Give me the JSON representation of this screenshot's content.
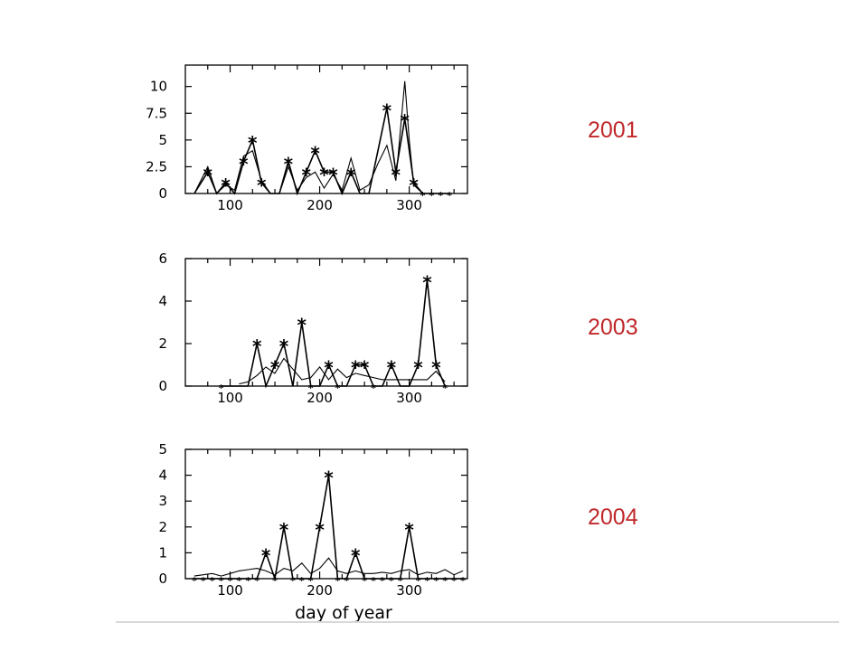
{
  "chart_data": [
    {
      "type": "line",
      "title": "",
      "year_label": "2001",
      "xlabel": "",
      "ylabel": "",
      "xlim": [
        50,
        365
      ],
      "ylim": [
        0,
        12
      ],
      "xticks": [
        "100",
        "200",
        "300"
      ],
      "xtick_values": [
        100,
        200,
        300
      ],
      "yticks": [
        "0",
        "2.5",
        "5",
        "7.5",
        "10"
      ],
      "ytick_values": [
        0,
        2.5,
        5,
        7.5,
        10
      ],
      "series": [
        {
          "style": "star",
          "x": [
            60,
            75,
            85,
            95,
            105,
            115,
            125,
            135,
            145,
            155,
            165,
            175,
            185,
            195,
            205,
            215,
            225,
            235,
            245,
            255,
            265,
            275,
            285,
            295,
            305,
            315,
            325,
            335,
            345
          ],
          "y": [
            0,
            2,
            0,
            1,
            0,
            3,
            5,
            1,
            0,
            0,
            3,
            0,
            2,
            4,
            2,
            2,
            0,
            2,
            0,
            0,
            4,
            8,
            2,
            7,
            1,
            0,
            0,
            0,
            0
          ],
          "marker": [
            false,
            true,
            false,
            true,
            false,
            true,
            true,
            true,
            false,
            false,
            true,
            false,
            true,
            true,
            true,
            true,
            false,
            true,
            false,
            false,
            false,
            true,
            true,
            true,
            true,
            true,
            true,
            true,
            true
          ]
        },
        {
          "style": "smooth",
          "x": [
            60,
            75,
            85,
            95,
            105,
            115,
            125,
            135,
            145,
            155,
            165,
            175,
            185,
            195,
            205,
            215,
            225,
            235,
            245,
            255,
            265,
            275,
            285,
            295,
            300,
            305,
            315
          ],
          "y": [
            0,
            2.5,
            0,
            0.8,
            0.3,
            3.5,
            4,
            1.2,
            0,
            0,
            2.5,
            0.3,
            1.5,
            2,
            0.5,
            1.8,
            0.3,
            3.3,
            0.3,
            0.8,
            2.8,
            4.5,
            1.2,
            10.5,
            5,
            0.8,
            0
          ]
        }
      ]
    },
    {
      "type": "line",
      "title": "",
      "year_label": "2003",
      "xlabel": "",
      "ylabel": "",
      "xlim": [
        50,
        365
      ],
      "ylim": [
        0,
        6
      ],
      "xticks": [
        "100",
        "200",
        "300"
      ],
      "xtick_values": [
        100,
        200,
        300
      ],
      "yticks": [
        "0",
        "2",
        "4",
        "6"
      ],
      "ytick_values": [
        0,
        2,
        4,
        6
      ],
      "series": [
        {
          "style": "star",
          "x": [
            90,
            120,
            130,
            140,
            150,
            160,
            170,
            180,
            190,
            200,
            210,
            220,
            230,
            240,
            250,
            260,
            270,
            280,
            290,
            300,
            310,
            320,
            330,
            340
          ],
          "y": [
            0,
            0,
            2,
            0,
            1,
            2,
            0,
            3,
            0,
            0,
            1,
            0,
            0,
            1,
            1,
            0,
            0,
            1,
            0,
            0,
            1,
            5,
            1,
            0
          ],
          "marker": [
            true,
            false,
            true,
            false,
            true,
            true,
            false,
            true,
            true,
            false,
            true,
            true,
            false,
            true,
            true,
            true,
            false,
            true,
            false,
            false,
            true,
            true,
            true,
            true
          ]
        },
        {
          "style": "smooth",
          "x": [
            110,
            120,
            130,
            140,
            150,
            160,
            170,
            180,
            190,
            200,
            210,
            220,
            230,
            240,
            250,
            260,
            270,
            280,
            290,
            300,
            310,
            320,
            330,
            340
          ],
          "y": [
            0.1,
            0.2,
            0.5,
            0.9,
            0.6,
            1.3,
            0.8,
            0.3,
            0.4,
            0.9,
            0.3,
            0.8,
            0.4,
            0.6,
            0.5,
            0.4,
            0.3,
            0.3,
            0.3,
            0.3,
            0.3,
            0.3,
            0.7,
            0.2
          ]
        }
      ]
    },
    {
      "type": "line",
      "title": "",
      "year_label": "2004",
      "xlabel": "day of year",
      "ylabel": "",
      "xlim": [
        50,
        365
      ],
      "ylim": [
        0,
        5
      ],
      "xticks": [
        "100",
        "200",
        "300"
      ],
      "xtick_values": [
        100,
        200,
        300
      ],
      "yticks": [
        "0",
        "1",
        "2",
        "3",
        "4",
        "5"
      ],
      "ytick_values": [
        0,
        1,
        2,
        3,
        4,
        5
      ],
      "series": [
        {
          "style": "star",
          "x": [
            60,
            70,
            80,
            90,
            100,
            110,
            120,
            130,
            140,
            150,
            160,
            170,
            180,
            190,
            200,
            210,
            220,
            230,
            240,
            250,
            260,
            270,
            280,
            290,
            300,
            310,
            320,
            330,
            340,
            350,
            360
          ],
          "y": [
            0,
            0,
            0,
            0,
            0,
            0,
            0,
            0,
            1,
            0,
            2,
            0,
            0,
            0,
            2,
            4,
            0,
            0,
            1,
            0,
            0,
            0,
            0,
            0,
            2,
            0,
            0,
            0,
            0,
            0,
            0
          ],
          "marker": [
            true,
            true,
            true,
            true,
            true,
            true,
            true,
            true,
            true,
            true,
            true,
            true,
            true,
            true,
            true,
            true,
            true,
            true,
            true,
            true,
            true,
            true,
            true,
            true,
            true,
            true,
            true,
            true,
            true,
            true,
            true
          ]
        },
        {
          "style": "smooth",
          "x": [
            60,
            70,
            80,
            90,
            100,
            110,
            120,
            130,
            140,
            150,
            160,
            170,
            180,
            190,
            200,
            210,
            220,
            230,
            240,
            250,
            260,
            270,
            280,
            290,
            300,
            310,
            320,
            330,
            340,
            350,
            360
          ],
          "y": [
            0.1,
            0.15,
            0.2,
            0.1,
            0.2,
            0.3,
            0.35,
            0.4,
            0.3,
            0.15,
            0.4,
            0.3,
            0.6,
            0.2,
            0.4,
            0.8,
            0.3,
            0.2,
            0.3,
            0.2,
            0.2,
            0.25,
            0.2,
            0.3,
            0.35,
            0.15,
            0.25,
            0.2,
            0.35,
            0.15,
            0.3
          ]
        }
      ]
    }
  ]
}
